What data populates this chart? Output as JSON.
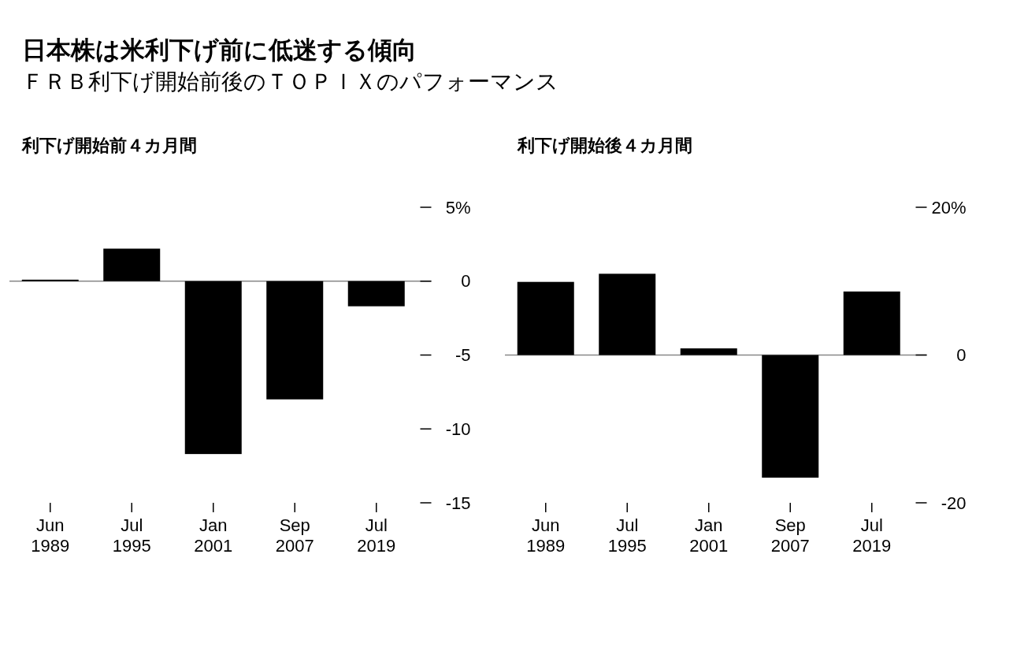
{
  "chart_data": [
    {
      "type": "other",
      "title": "日本株は米利下げ前に低迷する傾向",
      "subtitle": "ＦＲＢ利下げ開始前後のＴＯＰＩＸのパフォーマンス"
    },
    {
      "type": "bar",
      "title": "利下げ開始前４カ月間",
      "categories": [
        "Jun 1989",
        "Jul 1995",
        "Jan 2001",
        "Sep 2007",
        "Jul 2019"
      ],
      "values": [
        0.1,
        2.2,
        -11.7,
        -8.0,
        -1.7
      ],
      "color": "#000000",
      "ylim": [
        -15,
        5
      ],
      "yticks": [
        {
          "value": 5,
          "label": "5%"
        },
        0,
        -5,
        -10,
        -15
      ]
    },
    {
      "type": "bar",
      "title": "利下げ開始後４カ月間",
      "categories": [
        "Jun 1989",
        "Jul 1995",
        "Jan 2001",
        "Sep 2007",
        "Jul 2019"
      ],
      "values": [
        9.9,
        11.0,
        0.9,
        -16.6,
        8.6
      ],
      "color": "#000000",
      "ylim": [
        -20,
        20
      ],
      "yticks": [
        {
          "value": 20,
          "label": "20%"
        },
        0,
        -20
      ]
    }
  ]
}
